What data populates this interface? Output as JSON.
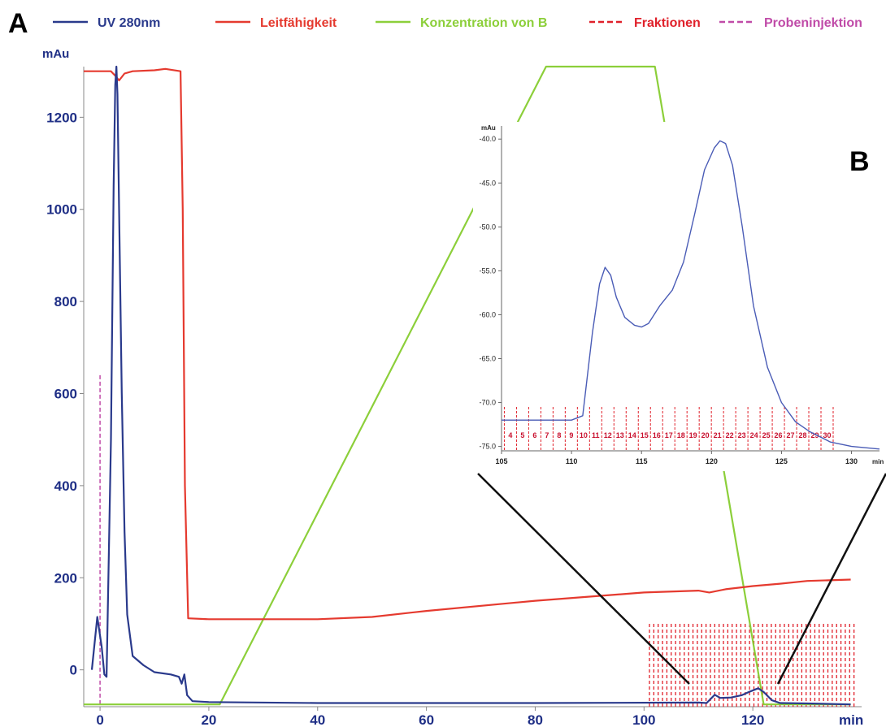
{
  "panel_labels": {
    "a": "A",
    "b": "B"
  },
  "legend": [
    {
      "label": "UV 280nm",
      "color": "#2a3a8c",
      "style": "solid"
    },
    {
      "label": "Leitfähigkeit",
      "color": "#e53a2f",
      "style": "solid"
    },
    {
      "label": "Konzentration von B",
      "color": "#8ccf3a",
      "style": "solid"
    },
    {
      "label": "Fraktionen",
      "color": "#e0202a",
      "style": "dashed"
    },
    {
      "label": "Probeninjektion",
      "color": "#c04ba8",
      "style": "dashed"
    }
  ],
  "chart_data": [
    {
      "type": "line",
      "panel": "A",
      "xlabel": "min",
      "ylabel": "mAu",
      "xlim": [
        -3,
        140
      ],
      "ylim": [
        -80,
        1310
      ],
      "xticks": [
        0,
        20,
        40,
        60,
        80,
        100,
        120
      ],
      "yticks": [
        0,
        200,
        400,
        600,
        800,
        1000,
        1200
      ],
      "series": [
        {
          "name": "UV 280nm",
          "color": "#2a3a8c",
          "x": [
            -1.5,
            -0.5,
            0.3,
            0.8,
            1.2,
            2.0,
            2.5,
            2.8,
            3.0,
            3.2,
            3.5,
            4.0,
            4.5,
            5.0,
            6.0,
            8.0,
            10.0,
            13.0,
            14.5,
            15.0,
            15.5,
            16.0,
            17.0,
            20.0,
            40.0,
            80.0,
            110.0,
            111.5,
            113.0,
            114.0,
            116.0,
            118.0,
            119.5,
            121.0,
            122.0,
            123.5,
            125.0,
            130.0,
            138.0
          ],
          "y": [
            0,
            115,
            50,
            -10,
            -15,
            500,
            1050,
            1270,
            1310,
            1250,
            1000,
            600,
            300,
            120,
            30,
            10,
            -5,
            -10,
            -15,
            -30,
            -10,
            -55,
            -68,
            -70,
            -72,
            -72,
            -71,
            -72,
            -54,
            -61,
            -60,
            -55,
            -47,
            -40,
            -48,
            -66,
            -72,
            -73,
            -75
          ]
        },
        {
          "name": "Leitfähigkeit",
          "color": "#e53a2f",
          "x": [
            -3,
            2,
            2.8,
            3.5,
            4.5,
            6,
            10,
            12,
            14.8,
            15.2,
            15.6,
            16.2,
            20,
            30,
            40,
            50,
            60,
            80,
            100,
            110,
            112,
            115,
            120,
            125,
            130,
            138
          ],
          "y": [
            1300,
            1300,
            1290,
            1280,
            1295,
            1300,
            1302,
            1305,
            1300,
            1000,
            400,
            112,
            110,
            110,
            110,
            115,
            128,
            150,
            168,
            172,
            168,
            175,
            182,
            187,
            193,
            196
          ]
        },
        {
          "name": "Konzentration von B",
          "color": "#8ccf3a",
          "x": [
            -3,
            22,
            82,
            102,
            122,
            138
          ],
          "y": [
            -75,
            -75,
            1310,
            1310,
            -75,
            -75
          ]
        }
      ],
      "injection_marker": {
        "name": "Probeninjektion",
        "x": 0,
        "y_top": 640,
        "y_bottom": -80
      },
      "fractions": {
        "name": "Fraktionen",
        "x_start": 101,
        "x_end": 139,
        "step": 0.8,
        "y_top": 100,
        "y_bottom": -80
      }
    },
    {
      "type": "line",
      "panel": "B",
      "xlabel": "min",
      "ylabel": "mAu",
      "xlim": [
        105,
        132
      ],
      "ylim": [
        -75.5,
        -38.5
      ],
      "xticks": [
        105,
        110,
        115,
        120,
        125,
        130
      ],
      "yticks": [
        -40.0,
        -45.0,
        -50.0,
        -55.0,
        -60.0,
        -65.0,
        -70.0,
        -75.0
      ],
      "series": [
        {
          "name": "UV 280nm",
          "color": "#4a5cb6",
          "x": [
            105,
            110.0,
            110.8,
            111.5,
            112.0,
            112.4,
            112.8,
            113.2,
            113.8,
            114.5,
            115.0,
            115.5,
            116.3,
            117.2,
            118.0,
            118.8,
            119.5,
            120.2,
            120.6,
            121.0,
            121.5,
            122.2,
            123.0,
            124.0,
            125.0,
            126.0,
            127.0,
            128.5,
            130.0,
            132.0
          ],
          "y": [
            -72.0,
            -72.0,
            -71.5,
            -62.0,
            -56.5,
            -54.6,
            -55.5,
            -58.0,
            -60.3,
            -61.2,
            -61.4,
            -61.0,
            -59.0,
            -57.2,
            -54.0,
            -48.5,
            -43.5,
            -41.0,
            -40.2,
            -40.5,
            -43.0,
            -50.0,
            -59.0,
            -66.0,
            -70.0,
            -72.2,
            -73.3,
            -74.5,
            -75.0,
            -75.3
          ]
        }
      ],
      "fractions": {
        "name": "Fraktionen",
        "x_start": 105.2,
        "x_end": 131.3,
        "step": 0.87,
        "y_top": -70.5,
        "labels": [
          "4",
          "5",
          "6",
          "7",
          "8",
          "9",
          "10",
          "11",
          "12",
          "13",
          "14",
          "15",
          "16",
          "17",
          "18",
          "19",
          "20",
          "21",
          "22",
          "23",
          "24",
          "25",
          "26",
          "27",
          "28",
          "29",
          "30"
        ]
      }
    }
  ]
}
